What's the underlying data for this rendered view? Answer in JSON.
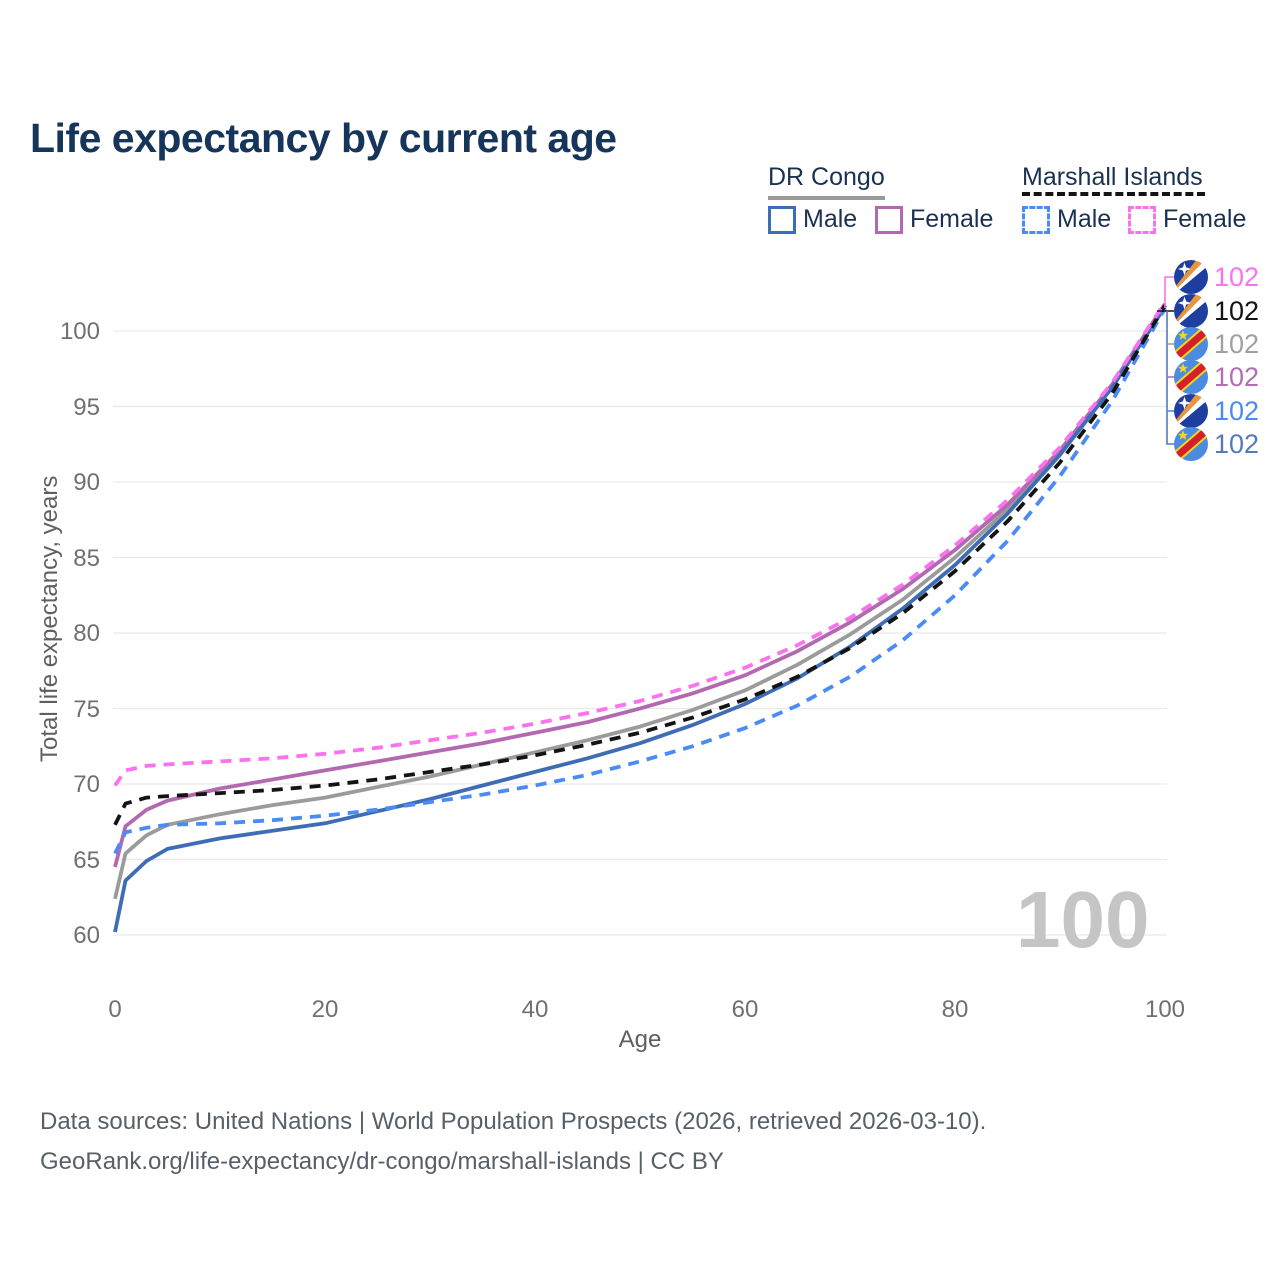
{
  "title": "Life expectancy by current age",
  "legend": {
    "groups": [
      {
        "name": "DR Congo",
        "line_style": "solid",
        "underline_color": "#9a9a9a",
        "items": [
          {
            "label": "Male",
            "color": "#3e6db5",
            "dashed": false
          },
          {
            "label": "Female",
            "color": "#b269b0",
            "dashed": false
          }
        ]
      },
      {
        "name": "Marshall Islands",
        "line_style": "dashed",
        "underline_color": "#141414",
        "items": [
          {
            "label": "Male",
            "color": "#4b8bf5",
            "dashed": true
          },
          {
            "label": "Female",
            "color": "#fb72ee",
            "dashed": true
          }
        ]
      }
    ]
  },
  "axes": {
    "x": {
      "label": "Age",
      "ticks": [
        0,
        20,
        40,
        60,
        80,
        100
      ],
      "range": [
        0,
        100
      ]
    },
    "y": {
      "label": "Total life expectancy, years",
      "ticks": [
        60,
        65,
        70,
        75,
        80,
        85,
        90,
        95,
        100
      ],
      "range": [
        60,
        102
      ]
    }
  },
  "watermark": "100",
  "end_labels": [
    {
      "flag": "marshall-islands",
      "value": "102",
      "color": "#fb72ee",
      "series": "Marshall Islands Female"
    },
    {
      "flag": "marshall-islands",
      "value": "102",
      "color": "#141414",
      "series": "Marshall Islands Both sexes"
    },
    {
      "flag": "dr-congo",
      "value": "102",
      "color": "#a0a0a0",
      "series": "DR Congo Both sexes"
    },
    {
      "flag": "dr-congo",
      "value": "102",
      "color": "#b46cb4",
      "series": "DR Congo Female"
    },
    {
      "flag": "marshall-islands",
      "value": "102",
      "color": "#4b8bf5",
      "series": "Marshall Islands Male"
    },
    {
      "flag": "dr-congo",
      "value": "102",
      "color": "#5579ba",
      "series": "DR Congo Male"
    }
  ],
  "footer": {
    "line1": "Data sources: United Nations | World Population Prospects (2026, retrieved 2026-03-10).",
    "line2": "GeoRank.org/life-expectancy/dr-congo/marshall-islands | CC BY"
  },
  "chart_data": {
    "type": "line",
    "title": "Life expectancy by current age",
    "xlabel": "Age",
    "ylabel": "Total life expectancy, years",
    "xlim": [
      0,
      100
    ],
    "ylim": [
      60,
      102
    ],
    "x_ticks": [
      0,
      20,
      40,
      60,
      80,
      100
    ],
    "y_ticks": [
      60,
      65,
      70,
      75,
      80,
      85,
      90,
      95,
      100
    ],
    "grid": "horizontal",
    "legend_position": "top-right",
    "ages": [
      0,
      1,
      3,
      5,
      10,
      15,
      20,
      25,
      30,
      35,
      40,
      45,
      50,
      55,
      60,
      65,
      70,
      75,
      80,
      85,
      90,
      95,
      100
    ],
    "series": [
      {
        "name": "DR Congo Both sexes",
        "country": "DR Congo",
        "sex": "both",
        "color": "#9b9b9b",
        "dashed": false,
        "values": [
          62.4,
          65.4,
          66.6,
          67.3,
          68.0,
          68.6,
          69.1,
          69.8,
          70.5,
          71.3,
          72.1,
          72.9,
          73.8,
          74.9,
          76.2,
          77.9,
          79.9,
          82.2,
          85.0,
          88.2,
          92.0,
          96.4,
          101.7
        ]
      },
      {
        "name": "DR Congo Female",
        "country": "DR Congo",
        "sex": "female",
        "color": "#b269b0",
        "dashed": false,
        "values": [
          64.5,
          67.2,
          68.3,
          68.9,
          69.7,
          70.3,
          70.9,
          71.5,
          72.1,
          72.7,
          73.4,
          74.1,
          75.0,
          76.0,
          77.2,
          78.8,
          80.7,
          82.9,
          85.5,
          88.5,
          92.1,
          96.5,
          101.8
        ]
      },
      {
        "name": "DR Congo Male",
        "country": "DR Congo",
        "sex": "male",
        "color": "#3e6db5",
        "dashed": false,
        "values": [
          60.2,
          63.6,
          64.9,
          65.7,
          66.4,
          66.9,
          67.4,
          68.2,
          69.0,
          69.9,
          70.8,
          71.7,
          72.7,
          73.9,
          75.3,
          77.0,
          79.1,
          81.6,
          84.5,
          87.9,
          91.8,
          96.3,
          101.6
        ]
      },
      {
        "name": "Marshall Islands Male",
        "country": "Marshall Islands",
        "sex": "male",
        "color": "#4b8bf5",
        "dashed": true,
        "values": [
          65.4,
          66.8,
          67.1,
          67.3,
          67.4,
          67.6,
          67.9,
          68.3,
          68.8,
          69.3,
          69.9,
          70.6,
          71.5,
          72.5,
          73.7,
          75.2,
          77.1,
          79.5,
          82.5,
          86.1,
          90.4,
          95.4,
          101.5
        ]
      },
      {
        "name": "Marshall Islands Both sexes",
        "country": "Marshall Islands",
        "sex": "both",
        "color": "#141414",
        "dashed": true,
        "values": [
          67.3,
          68.7,
          69.1,
          69.2,
          69.4,
          69.6,
          69.9,
          70.3,
          70.8,
          71.3,
          71.9,
          72.6,
          73.4,
          74.4,
          75.6,
          77.1,
          79.0,
          81.3,
          84.1,
          87.4,
          91.3,
          95.9,
          101.7
        ]
      },
      {
        "name": "Marshall Islands Female",
        "country": "Marshall Islands",
        "sex": "female",
        "color": "#fb72ee",
        "dashed": true,
        "values": [
          69.9,
          70.9,
          71.2,
          71.3,
          71.5,
          71.7,
          72.0,
          72.4,
          72.9,
          73.4,
          74.0,
          74.7,
          75.5,
          76.5,
          77.7,
          79.2,
          81.0,
          83.2,
          85.8,
          88.8,
          92.3,
          96.6,
          101.9
        ]
      }
    ]
  }
}
